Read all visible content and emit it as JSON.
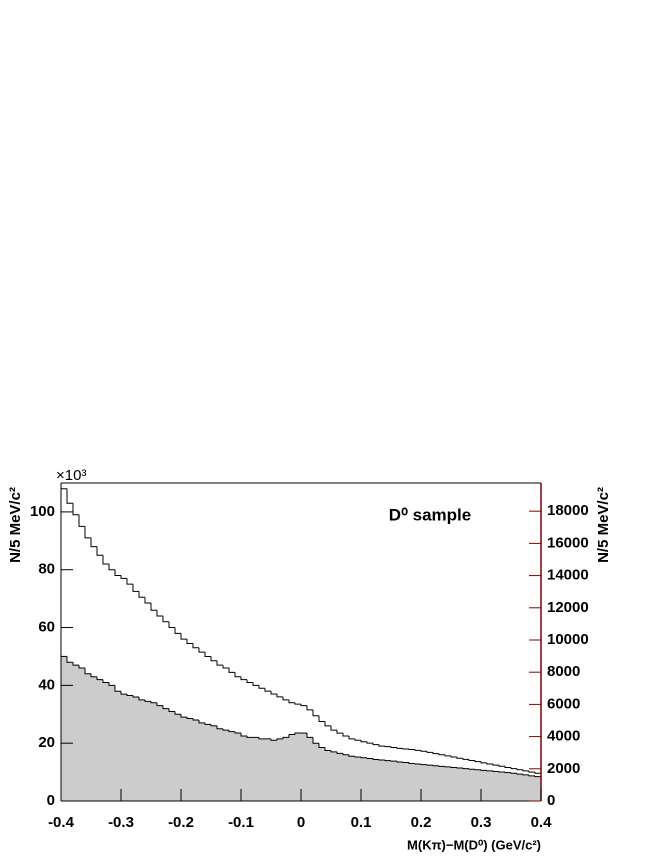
{
  "chart_data": {
    "type": "histogram",
    "annotation": "D⁰ sample",
    "x_label": "M(Kπ)−M(D⁰) (GeV/c²)",
    "y_label": "N/5 MeV/c²",
    "y2_label": "N/5 MeV/c²",
    "y_multiplier": "×10³",
    "bins": [
      -0.4,
      -0.39,
      -0.38,
      -0.37,
      -0.36,
      -0.35,
      -0.34,
      -0.33,
      -0.32,
      -0.31,
      -0.3,
      -0.29,
      -0.28,
      -0.27,
      -0.26,
      -0.25,
      -0.24,
      -0.23,
      -0.22,
      -0.21,
      -0.2,
      -0.19,
      -0.18,
      -0.17,
      -0.16,
      -0.15,
      -0.14,
      -0.13,
      -0.12,
      -0.11,
      -0.1,
      -0.09,
      -0.08,
      -0.07,
      -0.06,
      -0.05,
      -0.04,
      -0.03,
      -0.02,
      -0.01,
      0,
      0.01,
      0.02,
      0.03,
      0.04,
      0.05,
      0.06,
      0.07,
      0.08,
      0.09,
      0.1,
      0.11,
      0.12,
      0.13,
      0.14,
      0.15,
      0.16,
      0.17,
      0.18,
      0.19,
      0.2,
      0.21,
      0.22,
      0.23,
      0.24,
      0.25,
      0.26,
      0.27,
      0.28,
      0.29,
      0.3,
      0.31,
      0.32,
      0.33,
      0.34,
      0.35,
      0.36,
      0.37,
      0.38,
      0.39,
      0.4
    ],
    "series": [
      {
        "color": "#000000",
        "values": [
          108,
          103,
          99,
          95,
          91,
          88,
          85,
          82,
          80,
          78,
          77,
          75,
          72.5,
          70.5,
          68.5,
          66,
          64,
          62,
          60,
          58,
          56,
          54.5,
          53,
          51.5,
          50,
          48.5,
          47,
          46,
          44.5,
          43,
          42,
          41,
          40,
          39,
          38,
          37,
          36,
          35,
          34,
          33.5,
          33,
          31.5,
          29.5,
          27.5,
          26,
          24.5,
          23.5,
          22.5,
          21.5,
          21,
          20.5,
          20,
          19.5,
          19,
          18.8,
          18.5,
          18.2,
          18,
          17.8,
          17.5,
          17.2,
          16.8,
          16.4,
          16,
          15.6,
          15.2,
          14.8,
          14.4,
          14,
          13.6,
          13.2,
          12.8,
          12.4,
          12,
          11.6,
          11.2,
          10.8,
          10.4,
          10,
          9.6
        ]
      },
      {
        "color": "#000000",
        "fill": "#cccccc",
        "axis": "y2",
        "values": [
          8980,
          8620,
          8440,
          8260,
          7900,
          7720,
          7540,
          7360,
          7180,
          6820,
          6640,
          6550,
          6460,
          6280,
          6190,
          6100,
          5920,
          5740,
          5560,
          5390,
          5210,
          5120,
          5030,
          4850,
          4760,
          4670,
          4490,
          4400,
          4310,
          4220,
          4040,
          3950,
          3950,
          3860,
          3860,
          3770,
          3860,
          3950,
          4130,
          4220,
          4220,
          3950,
          3590,
          3320,
          3140,
          3050,
          2960,
          2870,
          2780,
          2730,
          2690,
          2640,
          2580,
          2550,
          2510,
          2480,
          2420,
          2390,
          2330,
          2300,
          2260,
          2230,
          2190,
          2150,
          2120,
          2080,
          2050,
          2010,
          1970,
          1940,
          1900,
          1870,
          1830,
          1800,
          1760,
          1720,
          1670,
          1620,
          1560,
          1510
        ]
      }
    ],
    "xlim": [
      -0.4,
      0.4
    ],
    "xticks": [
      -0.4,
      -0.3,
      -0.2,
      -0.1,
      0,
      0.1,
      0.2,
      0.3,
      0.4
    ],
    "ylim": [
      0,
      110
    ],
    "yticks": [
      0,
      20,
      40,
      60,
      80,
      100
    ],
    "y2lim": [
      0,
      19750
    ],
    "y2ticks": [
      0,
      2000,
      4000,
      6000,
      8000,
      10000,
      12000,
      14000,
      16000,
      18000
    ],
    "y2color": "#800000"
  }
}
